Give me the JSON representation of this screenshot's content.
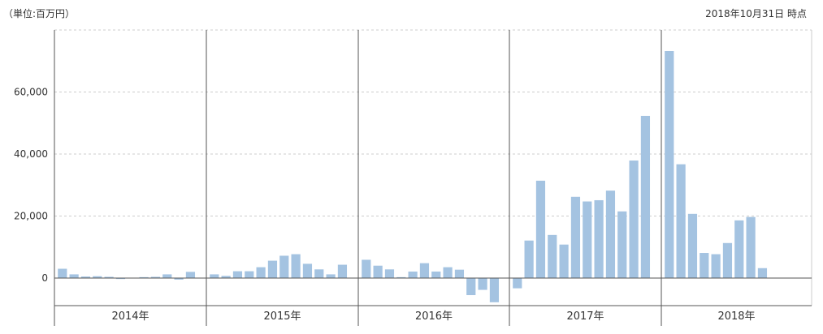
{
  "header": {
    "unit": "（単位:百万円）",
    "timestamp": "2018年10月31日 時点"
  },
  "chart_data": {
    "type": "bar",
    "ylim": [
      -8500,
      80000
    ],
    "y_ticks": [
      0,
      20000,
      40000,
      60000
    ],
    "y_tick_labels": [
      "0",
      "20,000",
      "40,000",
      "60,000"
    ],
    "grid": true,
    "bar_color": "#a4c3e1",
    "years": [
      {
        "label": "2014年",
        "values": [
          3000,
          1200,
          500,
          600,
          400,
          -300,
          0,
          300,
          400,
          1200,
          -500,
          2000
        ]
      },
      {
        "label": "2015年",
        "values": [
          1200,
          700,
          2200,
          2200,
          3500,
          5600,
          7200,
          7700,
          4600,
          2800,
          1200,
          4300
        ]
      },
      {
        "label": "2016年",
        "values": [
          5900,
          4000,
          2800,
          300,
          2100,
          4800,
          2100,
          3500,
          2700,
          -5500,
          -3800,
          -7800
        ]
      },
      {
        "label": "2017年",
        "values": [
          -3300,
          12100,
          31400,
          13900,
          10800,
          26200,
          24700,
          25100,
          28200,
          21500,
          37900,
          52300
        ]
      },
      {
        "label": "2018年",
        "values": [
          73200,
          36700,
          20700,
          8100,
          7700,
          11300,
          18600,
          19700,
          3200
        ]
      }
    ]
  }
}
